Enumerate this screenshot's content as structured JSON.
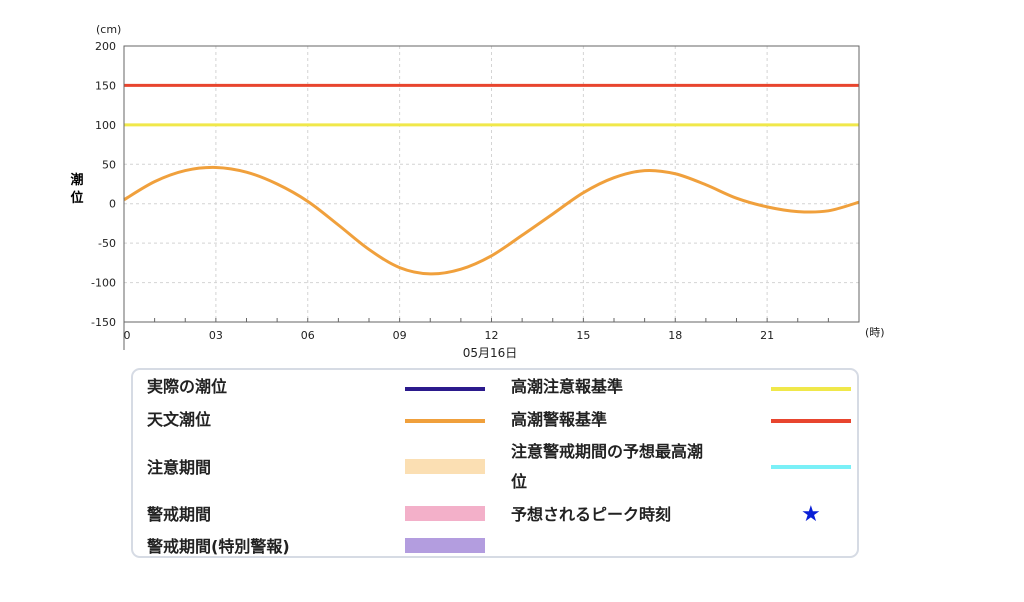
{
  "chart_data": {
    "type": "line",
    "y_unit": "(cm)",
    "x_unit": "(時)",
    "ylabel": "潮位",
    "date_label": "05月16日",
    "ylim": [
      -150,
      200
    ],
    "xlim": [
      0,
      24
    ],
    "y_ticks": [
      200,
      150,
      100,
      50,
      0,
      -50,
      -100,
      -150
    ],
    "x_ticks": [
      {
        "v": 0,
        "label": "0"
      },
      {
        "v": 3,
        "label": "03"
      },
      {
        "v": 6,
        "label": "06"
      },
      {
        "v": 9,
        "label": "09"
      },
      {
        "v": 12,
        "label": "12"
      },
      {
        "v": 15,
        "label": "15"
      },
      {
        "v": 18,
        "label": "18"
      },
      {
        "v": 21,
        "label": "21"
      }
    ],
    "grid": true,
    "reference_lines": [
      {
        "name": "高潮警報基準",
        "y": 150,
        "color": "#e8452e"
      },
      {
        "name": "高潮注意報基準",
        "y": 100,
        "color": "#f0e84a"
      }
    ],
    "series": [
      {
        "name": "天文潮位",
        "color": "#f0a03c",
        "x": [
          0,
          1,
          2,
          3,
          4,
          5,
          6,
          7,
          8,
          9,
          10,
          11,
          12,
          13,
          14,
          15,
          16,
          17,
          18,
          19,
          20,
          21,
          22,
          23,
          24
        ],
        "y": [
          5,
          28,
          42,
          46,
          40,
          25,
          3,
          -27,
          -58,
          -81,
          -89,
          -83,
          -66,
          -40,
          -13,
          14,
          33,
          42,
          38,
          24,
          7,
          -4,
          -10,
          -9,
          2
        ]
      }
    ]
  },
  "legend": {
    "items": [
      {
        "label": "実際の潮位",
        "kind": "line",
        "color": "#2b1a8c"
      },
      {
        "label": "天文潮位",
        "kind": "line",
        "color": "#f0a03c"
      },
      {
        "label": "注意期間",
        "kind": "band",
        "color": "#fbdfb3"
      },
      {
        "label": "警戒期間",
        "kind": "band",
        "color": "#f3b0c9"
      },
      {
        "label": "警戒期間(特別警報)",
        "kind": "band",
        "color": "#b39ddf"
      },
      {
        "label": "高潮注意報基準",
        "kind": "line",
        "color": "#f0e84a"
      },
      {
        "label": "高潮警報基準",
        "kind": "line",
        "color": "#e8452e"
      },
      {
        "label": "注意警戒期間の予想最高潮",
        "label2": "位",
        "kind": "line",
        "color": "#7af0f7"
      },
      {
        "label": "予想されるピーク時刻",
        "kind": "star",
        "color": "#0a1fd6",
        "symbol": "★"
      }
    ]
  }
}
